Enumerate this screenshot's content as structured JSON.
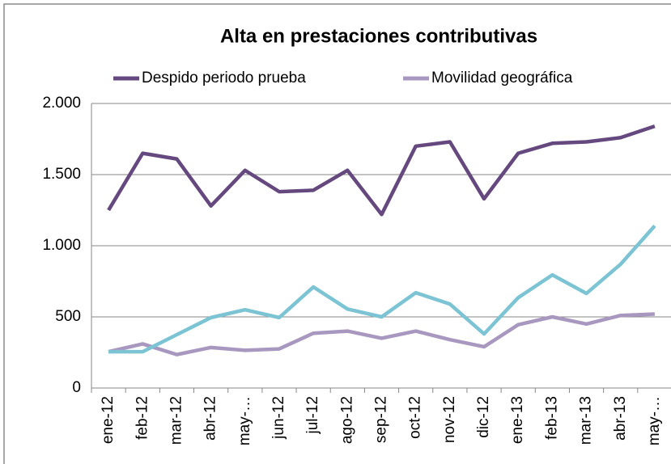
{
  "chart_data": {
    "type": "line",
    "title": "Alta en prestaciones contributivas",
    "categories": [
      "ene-12",
      "feb-12",
      "mar-12",
      "abr-12",
      "may-…",
      "jun-12",
      "jul-12",
      "ago-12",
      "sep-12",
      "oct-12",
      "nov-12",
      "dic-12",
      "ene-13",
      "feb-13",
      "mar-13",
      "abr-13",
      "may-…"
    ],
    "series": [
      {
        "name": "Despido periodo prueba",
        "color": "#65497e",
        "values": [
          1250,
          1650,
          1610,
          1280,
          1530,
          1380,
          1390,
          1530,
          1220,
          1700,
          1730,
          1330,
          1650,
          1720,
          1730,
          1760,
          1840
        ]
      },
      {
        "name": "Movilidad geográfica",
        "color": "#a898c0",
        "values": [
          255,
          310,
          235,
          285,
          265,
          275,
          385,
          400,
          350,
          400,
          340,
          290,
          445,
          500,
          450,
          510,
          520
        ]
      },
      {
        "color": "#7cc4d3",
        "values": [
          255,
          255,
          375,
          495,
          550,
          495,
          710,
          555,
          500,
          670,
          590,
          380,
          635,
          795,
          665,
          870,
          1140
        ]
      }
    ],
    "ylim": [
      0,
      2000
    ],
    "yticks": [
      0,
      500,
      {
        "value": 1000,
        "label": "1.000"
      },
      {
        "value": 1500,
        "label": "1.500"
      },
      {
        "value": 2000,
        "label": "2.000"
      }
    ],
    "grid": true,
    "legend": "top"
  }
}
